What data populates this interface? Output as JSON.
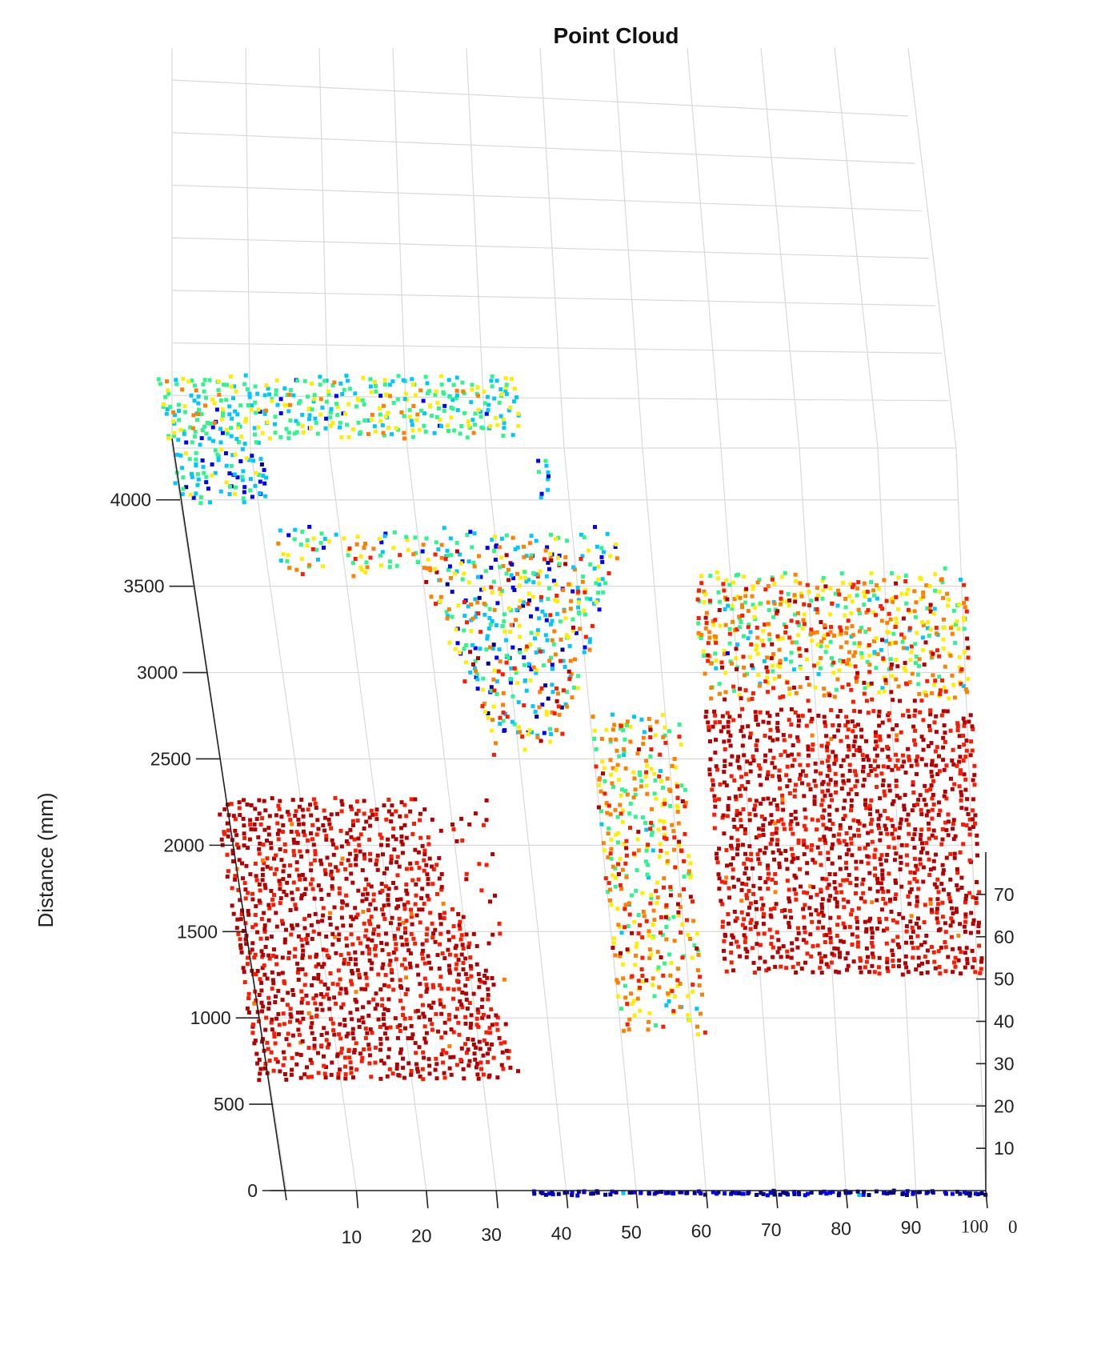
{
  "chart_data": {
    "type": "scatter",
    "projection": "3d",
    "title": "Point Cloud",
    "ylabel": "Distance (mm)",
    "x_ticks": [
      "10",
      "20",
      "30",
      "40",
      "50",
      "60",
      "70",
      "80",
      "90",
      "100"
    ],
    "y_ticks": [
      "0",
      "500",
      "1000",
      "1500",
      "2000",
      "2500",
      "3000",
      "3500",
      "4000"
    ],
    "z_ticks": [
      "0",
      "10",
      "20",
      "30",
      "40",
      "50",
      "60",
      "70"
    ],
    "xlim": [
      0,
      100
    ],
    "ylim": [
      0,
      4300
    ],
    "zlim": [
      0,
      80
    ],
    "grid": true,
    "colormap": [
      "#00008b",
      "#0000ff",
      "#00c8ff",
      "#2ef58c",
      "#ffee00",
      "#ff7f00",
      "#ff1a00",
      "#b30000"
    ],
    "clusters": [
      {
        "name": "upper-left",
        "x_range": [
          0,
          45
        ],
        "y_range": [
          4450,
          4800
        ],
        "z_range": [
          25,
          45
        ],
        "density": 0.55
      },
      {
        "name": "upper-left-lower",
        "x_range": [
          0,
          12
        ],
        "y_range": [
          4050,
          4450
        ],
        "z_range": [
          15,
          35
        ],
        "density": 0.5
      },
      {
        "name": "upper-right-post",
        "x_range": [
          46,
          48
        ],
        "y_range": [
          4000,
          4300
        ],
        "z_range": [
          15,
          30
        ],
        "density": 0.5
      },
      {
        "name": "middle-top",
        "x_range": [
          12,
          56
        ],
        "y_range": [
          3700,
          3900
        ],
        "z_range": [
          10,
          70
        ],
        "density": 0.55
      },
      {
        "name": "middle-funnel",
        "x_range": [
          28,
          54
        ],
        "y_range": [
          2700,
          3700
        ],
        "z_range": [
          10,
          70
        ],
        "density": 0.55
      },
      {
        "name": "right-top",
        "x_range": [
          65,
          100
        ],
        "y_range": [
          3000,
          3700
        ],
        "z_range": [
          30,
          75
        ],
        "density": 0.6
      },
      {
        "name": "right-block",
        "x_range": [
          65,
          100
        ],
        "y_range": [
          1500,
          3000
        ],
        "z_range": [
          75,
          80
        ],
        "density": 0.6
      },
      {
        "name": "left-block",
        "x_range": [
          0,
          36
        ],
        "y_range": [
          900,
          2500
        ],
        "z_range": [
          75,
          80
        ],
        "density": 0.6
      },
      {
        "name": "center-strand",
        "x_range": [
          50,
          62
        ],
        "y_range": [
          1100,
          2900
        ],
        "z_range": [
          35,
          70
        ],
        "density": 0.45
      },
      {
        "name": "floor-line",
        "x_range": [
          35,
          100
        ],
        "y_range": [
          0,
          15
        ],
        "z_range": [
          0,
          5
        ],
        "density": 0.9
      }
    ]
  }
}
